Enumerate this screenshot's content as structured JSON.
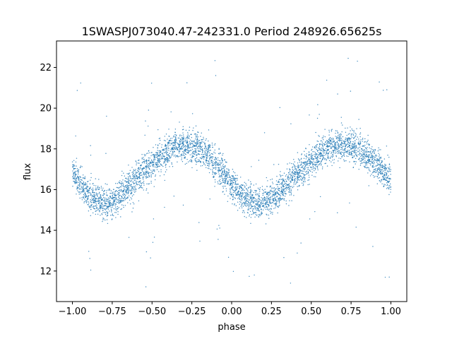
{
  "chart_data": {
    "type": "scatter",
    "title": "1SWASPJ073040.47-242331.0 Period 248926.65625s",
    "xlabel": "phase",
    "ylabel": "flux",
    "xlim": [
      -1.1,
      1.1
    ],
    "ylim": [
      10.5,
      23.3
    ],
    "xticks": [
      -1.0,
      -0.75,
      -0.5,
      -0.25,
      0.0,
      0.25,
      0.5,
      0.75,
      1.0
    ],
    "xtick_labels": [
      "−1.00",
      "−0.75",
      "−0.50",
      "−0.25",
      "0.00",
      "0.25",
      "0.50",
      "0.75",
      "1.00"
    ],
    "yticks": [
      12,
      14,
      16,
      18,
      20,
      22
    ],
    "ytick_labels": [
      "12",
      "14",
      "16",
      "18",
      "20",
      "22"
    ],
    "grid": false,
    "point_color": "#1f77b4",
    "series": [
      {
        "x": [
          -1.0,
          -0.95,
          -0.9,
          -0.85,
          -0.8,
          -0.75,
          -0.7,
          -0.65,
          -0.6,
          -0.55,
          -0.5,
          -0.45,
          -0.4,
          -0.35,
          -0.3,
          -0.25,
          -0.2,
          -0.15,
          -0.1,
          -0.05,
          0.0,
          0.05,
          0.1,
          0.15,
          0.2,
          0.25,
          0.3,
          0.35,
          0.4,
          0.45,
          0.5,
          0.55,
          0.6,
          0.65,
          0.7,
          0.75,
          0.8,
          0.85,
          0.9,
          0.95,
          1.0
        ],
        "y": [
          16.8,
          16.3,
          15.8,
          15.5,
          15.3,
          15.4,
          15.7,
          16.1,
          16.5,
          16.9,
          17.3,
          17.6,
          17.9,
          18.2,
          18.2,
          18.1,
          18.0,
          17.7,
          17.2,
          16.8,
          16.3,
          15.8,
          15.5,
          15.3,
          15.4,
          15.6,
          15.9,
          16.3,
          16.7,
          17.0,
          17.4,
          17.7,
          18.0,
          18.2,
          18.2,
          18.1,
          18.0,
          17.7,
          17.3,
          16.9,
          16.6
        ],
        "scatter_sd": 0.4,
        "points_per_bin": 110
      }
    ]
  }
}
